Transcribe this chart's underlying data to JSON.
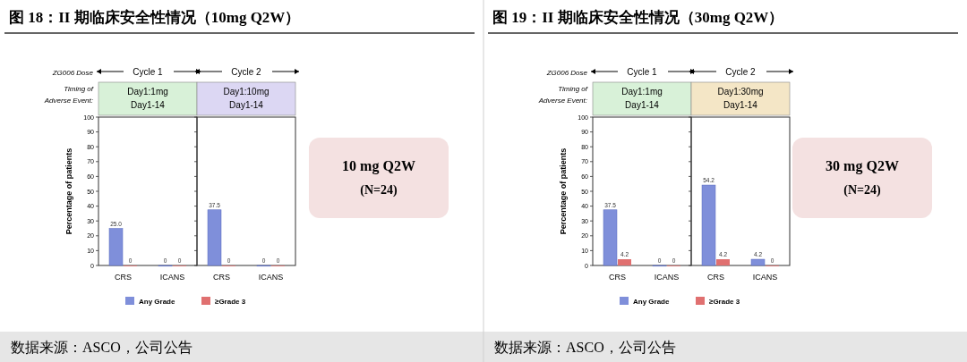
{
  "chart_data": [
    {
      "type": "bar",
      "title": "图 18：II 期临床安全性情况（10mg Q2W）",
      "subtitle": "Cycle 1",
      "ylabel": "Percentage of patients",
      "categories": [
        "CRS",
        "ICANS"
      ],
      "ylim": [
        0,
        100
      ],
      "yticks": [
        0,
        10,
        20,
        30,
        40,
        50,
        60,
        70,
        80,
        90,
        100
      ],
      "legend": "bottom",
      "annotations": [
        "Day1:1mg\nDay1-14",
        "ZG006 Dose",
        "Timing of\nAdverse Event:",
        "数据来源：ASCO，公司公告"
      ],
      "series": [
        {
          "name": "Any Grade",
          "color": "#7f8fda",
          "values": [
            25.0,
            0
          ],
          "value_labels": [
            "25.0",
            "0"
          ]
        },
        {
          "name": "≥Grade 3",
          "color": "#e07070",
          "values": [
            0,
            0
          ],
          "value_labels": [
            "0",
            "0"
          ]
        }
      ]
    },
    {
      "type": "bar",
      "subtitle": "Cycle 2",
      "categories": [
        "CRS",
        "ICANS"
      ],
      "ylim": [
        0,
        100
      ],
      "yticks": [
        0,
        10,
        20,
        30,
        40,
        50,
        60,
        70,
        80,
        90,
        100
      ],
      "tick_labels": "x",
      "annotations": [
        "Day1:10mg\nDay1-14"
      ],
      "series": [
        {
          "color": "#7f8fda",
          "values": [
            37.5,
            0
          ],
          "value_labels": [
            "37.5",
            "0"
          ]
        },
        {
          "color": "#e07070",
          "values": [
            0,
            0
          ],
          "value_labels": [
            "0",
            "0"
          ]
        }
      ]
    },
    {
      "type": "other",
      "title": "10 mg Q2W",
      "annotations": [
        "(N=24)"
      ]
    },
    {
      "type": "bar",
      "title": "图 19：II 期临床安全性情况（30mg Q2W）",
      "subtitle": "Cycle 1",
      "ylabel": "Percentage of patients",
      "categories": [
        "CRS",
        "ICANS"
      ],
      "ylim": [
        0,
        100
      ],
      "yticks": [
        0,
        10,
        20,
        30,
        40,
        50,
        60,
        70,
        80,
        90,
        100
      ],
      "legend": "bottom",
      "annotations": [
        "Day1:1mg\nDay1-14",
        "ZG006 Dose",
        "Timing of\nAdverse Event:",
        "数据来源：ASCO，公司公告"
      ],
      "series": [
        {
          "name": "Any Grade",
          "color": "#7f8fda",
          "values": [
            37.5,
            0
          ],
          "value_labels": [
            "37.5",
            "0"
          ]
        },
        {
          "name": "≥Grade 3",
          "color": "#e07070",
          "values": [
            4.2,
            0
          ],
          "value_labels": [
            "4.2",
            "0"
          ]
        }
      ]
    },
    {
      "type": "bar",
      "subtitle": "Cycle 2",
      "categories": [
        "CRS",
        "ICANS"
      ],
      "ylim": [
        0,
        100
      ],
      "yticks": [
        0,
        10,
        20,
        30,
        40,
        50,
        60,
        70,
        80,
        90,
        100
      ],
      "tick_labels": "x",
      "annotations": [
        "Day1:30mg\nDay1-14"
      ],
      "series": [
        {
          "color": "#7f8fda",
          "values": [
            54.2,
            4.2
          ],
          "value_labels": [
            "54.2",
            "4.2"
          ]
        },
        {
          "color": "#e07070",
          "values": [
            4.2,
            0
          ],
          "value_labels": [
            "4.2",
            "0"
          ]
        }
      ]
    },
    {
      "type": "other",
      "title": "30 mg Q2W",
      "annotations": [
        "(N=24)"
      ]
    }
  ]
}
